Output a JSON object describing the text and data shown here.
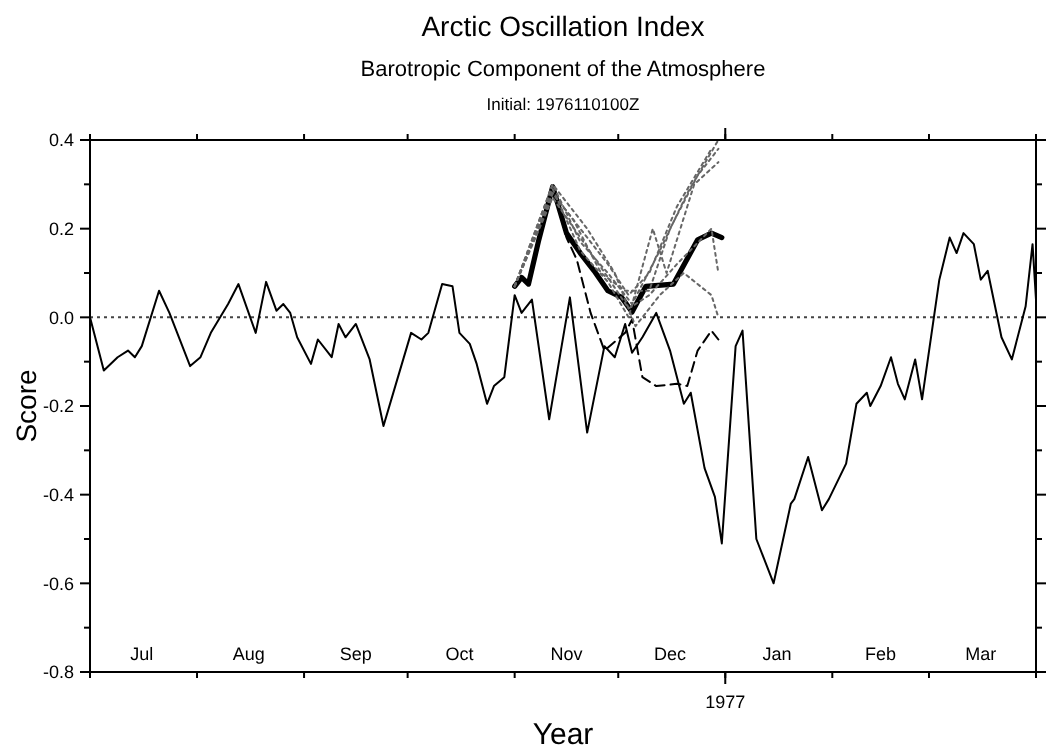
{
  "chart_data": {
    "type": "line",
    "title": "Arctic Oscillation Index",
    "subtitle": "Barotropic Component of the Atmosphere",
    "annotations": [
      "Initial: 1976110100Z",
      "1977"
    ],
    "xlabel": "Year",
    "ylabel": "Score",
    "xlim": [
      "1976-07-01",
      "1977-04-01"
    ],
    "xticks": [
      {
        "value": "1976-07-01",
        "label": null
      },
      {
        "value": "1976-08-01",
        "label": null
      },
      {
        "value": "1976-09-01",
        "label": null
      },
      {
        "value": "1976-10-01",
        "label": null
      },
      {
        "value": "1976-11-01",
        "label": null
      },
      {
        "value": "1976-12-01",
        "label": null
      },
      {
        "value": "1977-01-01",
        "label": null
      },
      {
        "value": "1977-02-01",
        "label": null
      },
      {
        "value": "1977-03-01",
        "label": null
      },
      {
        "value": "1977-04-01",
        "label": null
      },
      {
        "value": "1976-07-16",
        "label": "Jul"
      },
      {
        "value": "1976-08-16",
        "label": "Aug"
      },
      {
        "value": "1976-09-16",
        "label": "Sep"
      },
      {
        "value": "1976-10-16",
        "label": "Oct"
      },
      {
        "value": "1976-11-16",
        "label": "Nov"
      },
      {
        "value": "1976-12-16",
        "label": "Dec"
      },
      {
        "value": "1977-01-16",
        "label": "Jan"
      },
      {
        "value": "1977-02-15",
        "label": "Feb"
      },
      {
        "value": "1977-03-16",
        "label": "Mar"
      }
    ],
    "ylim": [
      -0.8,
      0.4
    ],
    "yticks": [
      {
        "value": -0.8,
        "label": "-0.8"
      },
      {
        "value": -0.7,
        "label": null
      },
      {
        "value": -0.6,
        "label": "-0.6"
      },
      {
        "value": -0.5,
        "label": null
      },
      {
        "value": -0.4,
        "label": "-0.4"
      },
      {
        "value": -0.3,
        "label": null
      },
      {
        "value": -0.2,
        "label": "-0.2"
      },
      {
        "value": -0.1,
        "label": null
      },
      {
        "value": 0,
        "label": "0.0"
      },
      {
        "value": 0.1,
        "label": null
      },
      {
        "value": 0.2,
        "label": "0.2"
      },
      {
        "value": 0.3,
        "label": null
      },
      {
        "value": 0.4,
        "label": "0.4"
      }
    ],
    "grid": false,
    "ref_lines": [
      {
        "axis": "y",
        "value": 0,
        "line_style": "dotted",
        "color": "#444444"
      }
    ],
    "series": [
      {
        "color": "#000000",
        "line_style": "solid",
        "x": [
          "1976-07-01",
          "1976-07-05",
          "1976-07-09",
          "1976-07-12",
          "1976-07-14",
          "1976-07-16",
          "1976-07-21",
          "1976-07-24",
          "1976-07-30",
          "1976-08-02",
          "1976-08-05",
          "1976-08-10",
          "1976-08-13",
          "1976-08-18",
          "1976-08-21",
          "1976-08-24",
          "1976-08-26",
          "1976-08-28",
          "1976-08-30",
          "1976-09-03",
          "1976-09-05",
          "1976-09-09",
          "1976-09-11",
          "1976-09-13",
          "1976-09-16",
          "1976-09-20",
          "1976-09-24",
          "1976-09-28",
          "1976-10-02",
          "1976-10-05",
          "1976-10-07",
          "1976-10-11",
          "1976-10-14",
          "1976-10-16",
          "1976-10-19",
          "1976-10-21",
          "1976-10-24",
          "1976-10-26",
          "1976-10-29",
          "1976-11-01",
          "1976-11-03",
          "1976-11-06",
          "1976-11-11",
          "1976-11-17",
          "1976-11-22",
          "1976-11-27",
          "1976-11-30",
          "1976-12-03",
          "1976-12-05",
          "1976-12-08",
          "1976-12-12",
          "1976-12-16",
          "1976-12-20",
          "1976-12-22",
          "1976-12-26",
          "1976-12-29",
          "1976-12-31",
          "1977-01-04",
          "1977-01-06",
          "1977-01-10",
          "1977-01-15",
          "1977-01-20",
          "1977-01-21",
          "1977-01-25",
          "1977-01-29",
          "1977-01-31",
          "1977-02-05",
          "1977-02-08",
          "1977-02-11",
          "1977-02-12",
          "1977-02-15",
          "1977-02-18",
          "1977-02-20",
          "1977-02-22",
          "1977-02-25",
          "1977-02-27",
          "1977-03-04",
          "1977-03-07",
          "1977-03-09",
          "1977-03-11",
          "1977-03-14",
          "1977-03-16",
          "1977-03-18",
          "1977-03-22",
          "1977-03-25",
          "1977-03-29",
          "1977-03-31",
          "1977-04-01"
        ],
        "values": [
          0.0,
          -0.12,
          -0.09,
          -0.075,
          -0.09,
          -0.065,
          0.06,
          0.01,
          -0.11,
          -0.09,
          -0.035,
          0.03,
          0.075,
          -0.035,
          0.08,
          0.015,
          0.03,
          0.01,
          -0.045,
          -0.105,
          -0.05,
          -0.09,
          -0.015,
          -0.045,
          -0.015,
          -0.095,
          -0.245,
          -0.14,
          -0.035,
          -0.05,
          -0.035,
          0.075,
          0.07,
          -0.035,
          -0.06,
          -0.105,
          -0.195,
          -0.155,
          -0.135,
          0.05,
          0.01,
          0.04,
          -0.23,
          0.045,
          -0.26,
          -0.065,
          -0.09,
          -0.015,
          -0.08,
          -0.045,
          0.01,
          -0.075,
          -0.195,
          -0.17,
          -0.34,
          -0.405,
          -0.51,
          -0.065,
          -0.03,
          -0.5,
          -0.6,
          -0.42,
          -0.41,
          -0.315,
          -0.435,
          -0.41,
          -0.33,
          -0.195,
          -0.17,
          -0.2,
          -0.155,
          -0.09,
          -0.15,
          -0.185,
          -0.095,
          -0.185,
          0.085,
          0.18,
          0.145,
          0.19,
          0.165,
          0.085,
          0.105,
          -0.045,
          -0.095,
          0.025,
          0.165,
          0.04
        ]
      },
      {
        "color": "#000000",
        "line_style": "solid",
        "x": [
          "1976-11-01",
          "1976-11-03",
          "1976-11-05",
          "1976-11-08",
          "1976-11-12",
          "1976-11-16",
          "1976-11-20",
          "1976-11-24",
          "1976-11-28",
          "1976-12-02",
          "1976-12-05",
          "1976-12-09",
          "1976-12-17",
          "1976-12-24",
          "1976-12-28",
          "1976-12-31"
        ],
        "values": [
          0.07,
          0.09,
          0.075,
          0.175,
          0.295,
          0.19,
          0.145,
          0.105,
          0.06,
          0.045,
          0.012,
          0.07,
          0.075,
          0.175,
          0.19,
          0.18
        ]
      },
      {
        "color": "#000000",
        "line_style": "dashed",
        "x": [
          "1976-11-12",
          "1976-11-16",
          "1976-11-19",
          "1976-11-23",
          "1976-11-27",
          "1976-12-03",
          "1976-12-05",
          "1976-12-08",
          "1976-12-12",
          "1976-12-18",
          "1976-12-21",
          "1976-12-24",
          "1976-12-28",
          "1976-12-30"
        ],
        "values": [
          0.295,
          0.18,
          0.13,
          0.01,
          -0.075,
          -0.035,
          -0.005,
          -0.135,
          -0.155,
          -0.15,
          -0.155,
          -0.075,
          -0.03,
          -0.05
        ]
      },
      {
        "color": "#666666",
        "line_style": "dotted",
        "x": [
          "1976-11-01",
          "1976-11-12",
          "1976-11-20",
          "1976-11-28",
          "1976-12-05",
          "1976-12-13",
          "1976-12-21",
          "1976-12-30"
        ],
        "values": [
          0.07,
          0.3,
          0.17,
          0.1,
          0.03,
          0.15,
          0.28,
          0.4
        ]
      },
      {
        "color": "#666666",
        "line_style": "dotted",
        "x": [
          "1976-11-01",
          "1976-11-12",
          "1976-11-20",
          "1976-11-28",
          "1976-12-04",
          "1976-12-10",
          "1976-12-18",
          "1976-12-28"
        ],
        "values": [
          0.07,
          0.28,
          0.2,
          0.12,
          0.05,
          0.1,
          0.25,
          0.38
        ]
      },
      {
        "color": "#666666",
        "line_style": "dotted",
        "x": [
          "1976-11-01",
          "1976-11-12",
          "1976-11-20",
          "1976-11-28",
          "1976-12-04",
          "1976-12-11",
          "1976-12-15",
          "1976-12-23",
          "1976-12-30"
        ],
        "values": [
          0.07,
          0.29,
          0.15,
          0.08,
          0.0,
          0.2,
          0.1,
          0.3,
          0.35
        ]
      },
      {
        "color": "#666666",
        "line_style": "dotted",
        "x": [
          "1976-11-01",
          "1976-11-12",
          "1976-11-20",
          "1976-11-28",
          "1976-12-04",
          "1976-12-10",
          "1976-12-18",
          "1976-12-28",
          "1976-12-30"
        ],
        "values": [
          0.07,
          0.27,
          0.18,
          0.09,
          0.02,
          0.05,
          0.12,
          0.2,
          0.1
        ]
      },
      {
        "color": "#666666",
        "line_style": "dotted",
        "x": [
          "1976-11-01",
          "1976-11-12",
          "1976-11-22",
          "1976-11-30",
          "1976-12-06",
          "1976-12-13",
          "1976-12-20",
          "1976-12-28",
          "1976-12-30"
        ],
        "values": [
          0.07,
          0.3,
          0.2,
          0.1,
          -0.02,
          0.05,
          0.1,
          0.05,
          0.0
        ]
      },
      {
        "color": "#666666",
        "line_style": "dotted",
        "x": [
          "1976-11-01",
          "1976-11-12",
          "1976-11-18",
          "1976-11-26",
          "1976-12-03",
          "1976-12-10",
          "1976-12-16",
          "1976-12-24",
          "1976-12-30"
        ],
        "values": [
          0.07,
          0.28,
          0.22,
          0.1,
          0.06,
          0.06,
          0.2,
          0.32,
          0.38
        ]
      }
    ]
  }
}
